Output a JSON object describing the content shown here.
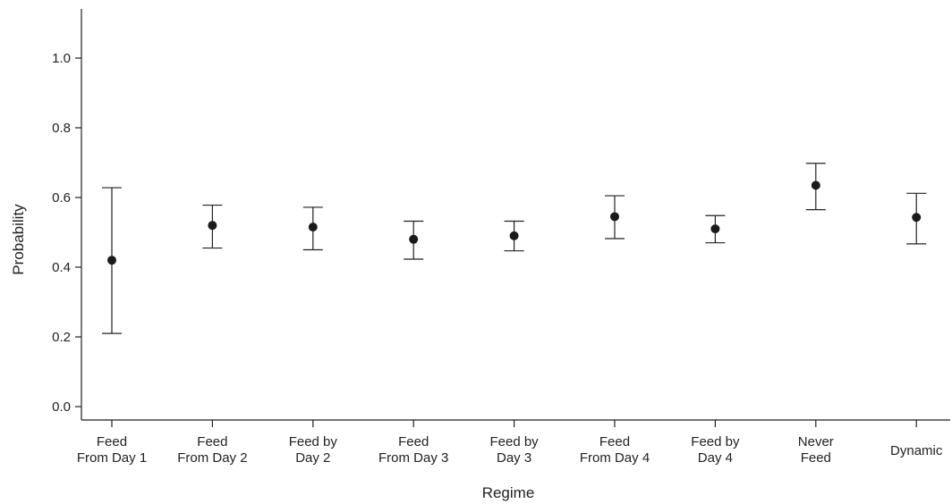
{
  "chart_data": {
    "type": "scatter",
    "title": "",
    "xlabel": "Regime",
    "ylabel": "Probability",
    "ylim": [
      -0.02,
      1.15
    ],
    "yticks": [
      "0.0",
      "0.2",
      "0.4",
      "0.6",
      "0.8",
      "1.0"
    ],
    "grid": false,
    "categories": [
      [
        "Feed",
        "From Day 1"
      ],
      [
        "Feed",
        "From Day 2"
      ],
      [
        "Feed by",
        "Day 2"
      ],
      [
        "Feed",
        "From Day 3"
      ],
      [
        "Feed by",
        "Day 3"
      ],
      [
        "Feed",
        "From Day 4"
      ],
      [
        "Feed by",
        "Day 4"
      ],
      [
        "Never",
        "Feed"
      ],
      [
        "Dynamic"
      ]
    ],
    "series": [
      {
        "values": [
          0.42,
          0.52,
          0.515,
          0.48,
          0.49,
          0.545,
          0.51,
          0.635,
          0.543
        ],
        "lower": [
          0.21,
          0.455,
          0.45,
          0.423,
          0.447,
          0.482,
          0.47,
          0.565,
          0.467
        ],
        "upper": [
          0.628,
          0.578,
          0.572,
          0.532,
          0.532,
          0.605,
          0.548,
          0.698,
          0.612
        ]
      }
    ],
    "colors": {
      "marker": "#1a1a1a",
      "axis": "#222222"
    }
  }
}
